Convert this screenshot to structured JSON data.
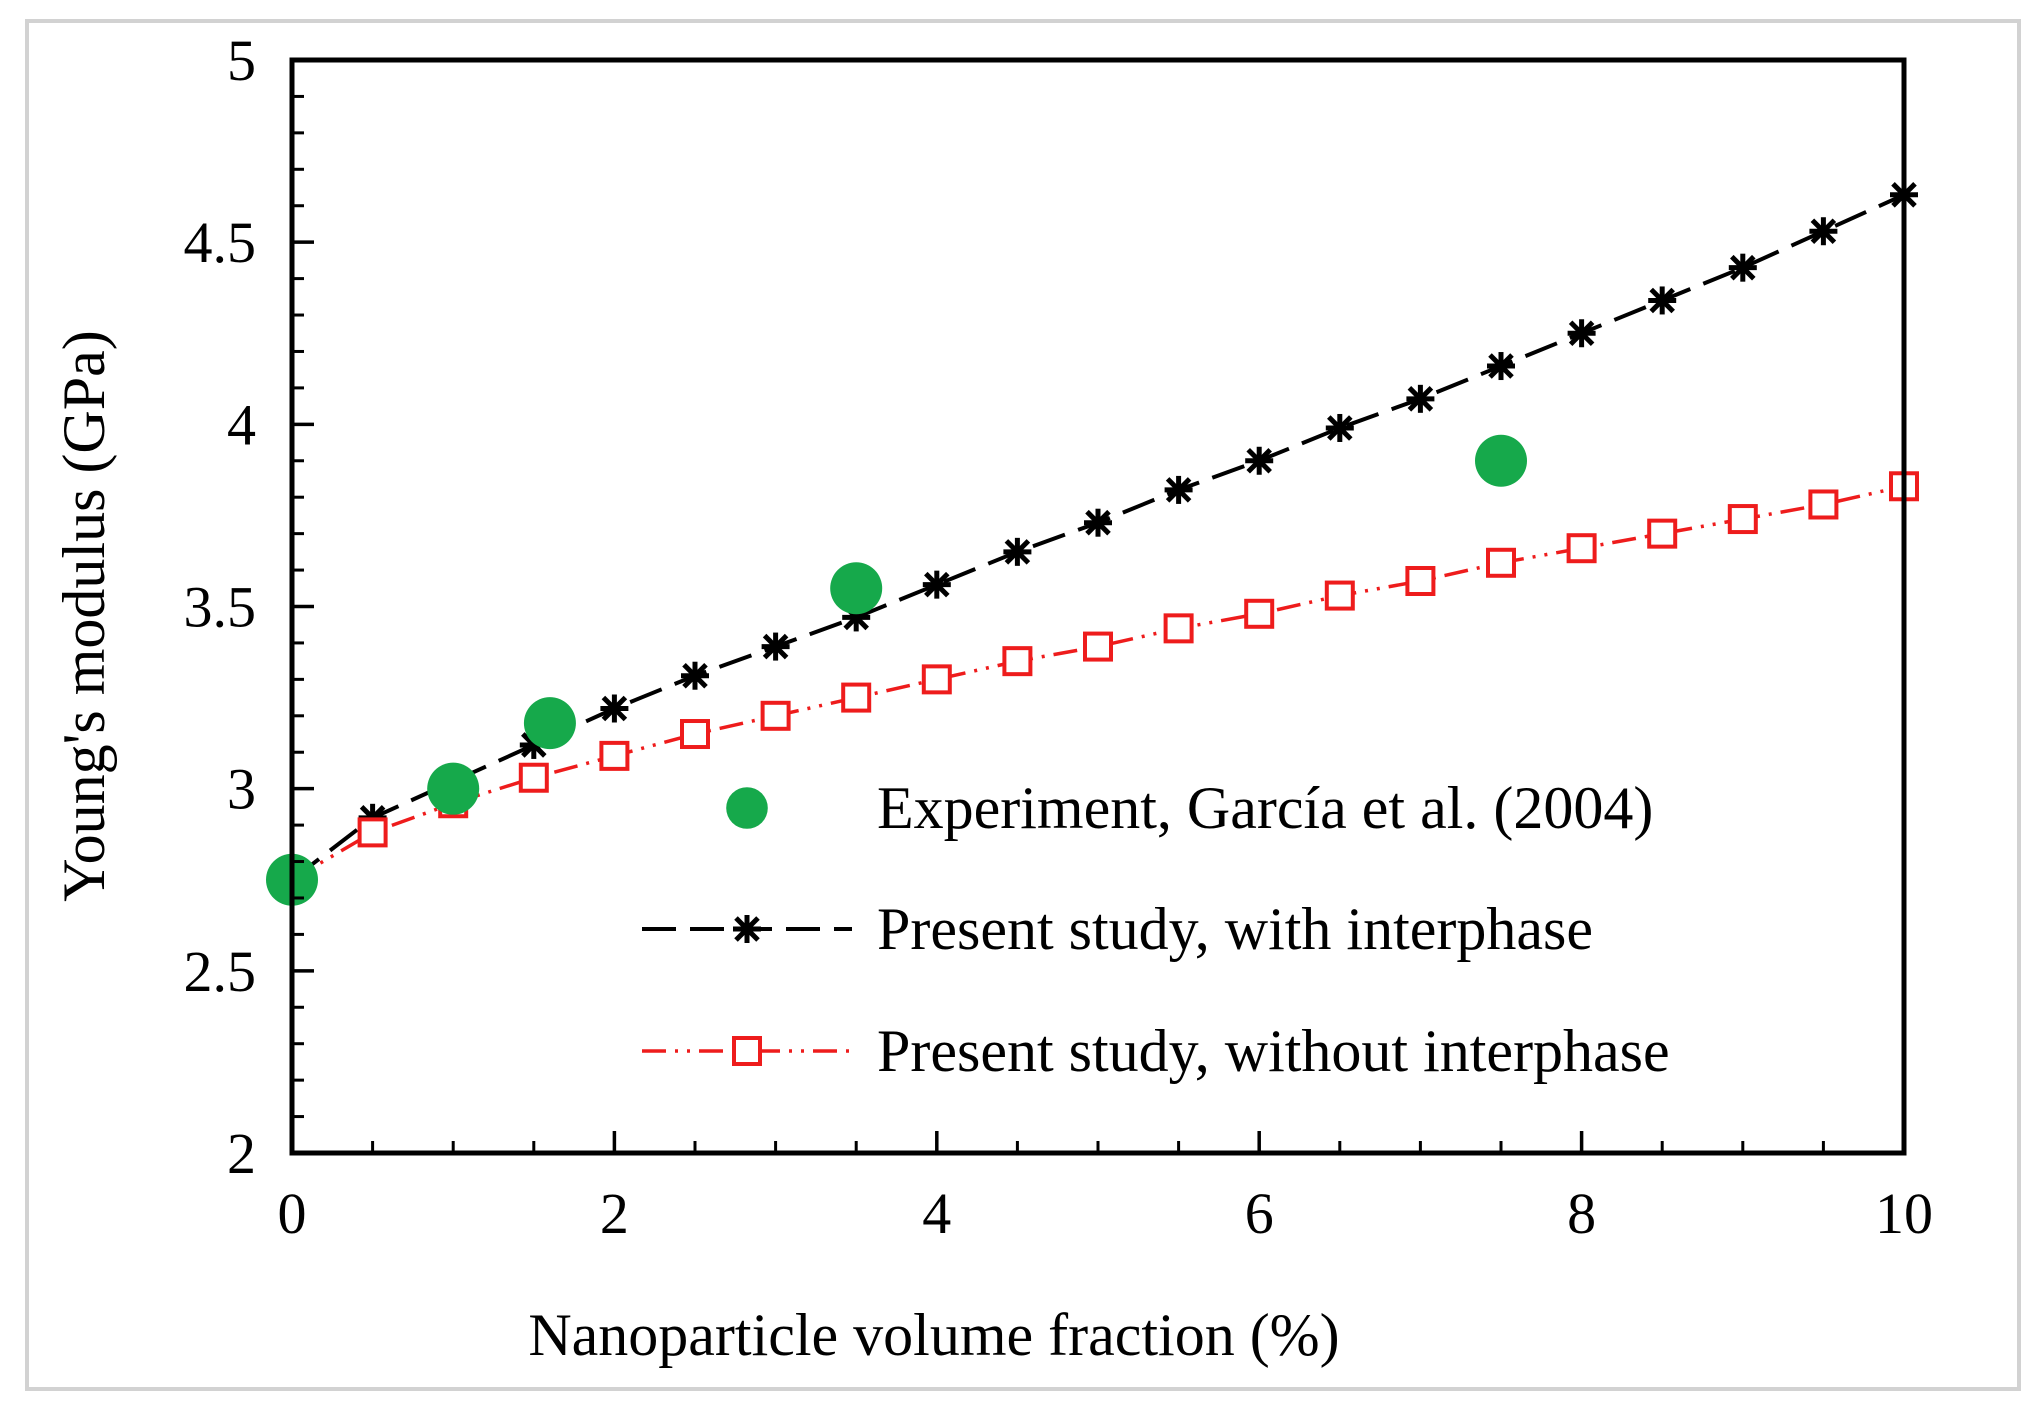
{
  "chart_data": {
    "type": "line",
    "title": "",
    "xlabel": "Nanoparticle volume fraction (%)",
    "ylabel": "Young's modulus (GPa)",
    "xlim": [
      0,
      10
    ],
    "ylim": [
      2,
      5
    ],
    "x_major_ticks": [
      0,
      2,
      4,
      6,
      8,
      10
    ],
    "x_tick_labels": [
      "0",
      "2",
      "4",
      "6",
      "8",
      "10"
    ],
    "x_minor_step": 0.5,
    "y_major_ticks": [
      2,
      2.5,
      3,
      3.5,
      4,
      4.5,
      5
    ],
    "y_tick_labels": [
      "2",
      "2.5",
      "3",
      "3.5",
      "4",
      "4.5",
      "5"
    ],
    "y_minor_step": 0.1,
    "grid": false,
    "legend_position": "lower-right",
    "series": [
      {
        "name": "Experiment, García et al. (2004)",
        "style": "scatter",
        "marker": "filled-circle",
        "color": "#16a94b",
        "x": [
          0,
          1,
          1.6,
          3.5,
          7.5
        ],
        "y": [
          2.75,
          3.0,
          3.18,
          3.55,
          3.9
        ]
      },
      {
        "name": "Present study, with interphase",
        "style": "dashed-line",
        "marker": "asterisk",
        "color": "#000000",
        "x": [
          0,
          0.5,
          1,
          1.5,
          2,
          2.5,
          3,
          3.5,
          4,
          4.5,
          5,
          5.5,
          6,
          6.5,
          7,
          7.5,
          8,
          8.5,
          9,
          9.5,
          10
        ],
        "y": [
          2.75,
          2.92,
          3.02,
          3.12,
          3.22,
          3.31,
          3.39,
          3.47,
          3.56,
          3.65,
          3.73,
          3.82,
          3.9,
          3.99,
          4.07,
          4.16,
          4.25,
          4.34,
          4.43,
          4.53,
          4.63
        ]
      },
      {
        "name": "Present study, without interphase",
        "style": "dash-dot-dot-line",
        "marker": "open-square",
        "color": "#ee1c1c",
        "x": [
          0,
          0.5,
          1,
          1.5,
          2,
          2.5,
          3,
          3.5,
          4,
          4.5,
          5,
          5.5,
          6,
          6.5,
          7,
          7.5,
          8,
          8.5,
          9,
          9.5,
          10
        ],
        "y": [
          2.75,
          2.88,
          2.96,
          3.03,
          3.09,
          3.15,
          3.2,
          3.25,
          3.3,
          3.35,
          3.39,
          3.44,
          3.48,
          3.53,
          3.57,
          3.62,
          3.66,
          3.7,
          3.74,
          3.78,
          3.83
        ]
      }
    ]
  }
}
